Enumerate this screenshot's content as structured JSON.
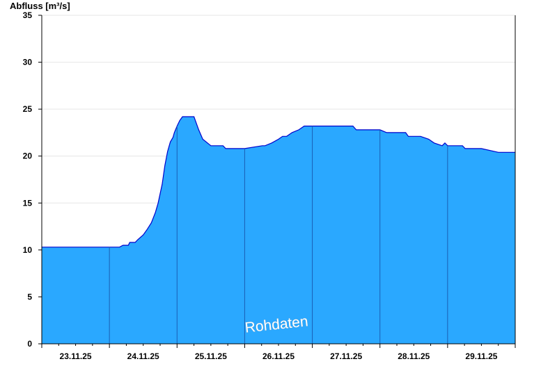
{
  "chart_data": {
    "type": "area",
    "ylabel": "Abfluss [m³/s]",
    "ylim": [
      0,
      35
    ],
    "y_ticks": [
      0,
      5,
      10,
      15,
      20,
      25,
      30,
      35
    ],
    "x_range_days": [
      0,
      7
    ],
    "x_tick_labels": [
      "23.11.25",
      "24.11.25",
      "25.11.25",
      "26.11.25",
      "27.11.25",
      "28.11.25",
      "29.11.25"
    ],
    "grid": true,
    "fill_color": "#2aa8ff",
    "line_color": "#0000cc",
    "annotation": "Rohdaten",
    "series": [
      {
        "x": [
          0,
          1.0,
          1.15,
          1.2,
          1.28,
          1.3,
          1.38,
          1.42,
          1.5,
          1.56,
          1.62,
          1.68,
          1.72,
          1.78,
          1.82,
          1.86,
          1.9,
          1.94,
          1.96,
          2.0,
          2.04,
          2.08,
          2.12,
          2.16,
          2.2,
          2.25,
          2.28,
          2.32,
          2.38,
          2.5,
          2.54,
          2.6,
          2.68,
          2.72,
          2.8,
          2.9,
          3.0,
          3.26,
          3.3,
          3.4,
          3.5,
          3.56,
          3.62,
          3.7,
          3.8,
          3.88,
          3.96,
          4.0,
          4.6,
          4.65,
          4.8,
          5.0,
          5.1,
          5.38,
          5.42,
          5.6,
          5.72,
          5.8,
          5.92,
          5.96,
          6.0,
          6.22,
          6.26,
          6.5,
          6.75,
          7.0
        ],
        "values": [
          10.3,
          10.3,
          10.3,
          10.5,
          10.5,
          10.8,
          10.8,
          11.1,
          11.6,
          12.2,
          12.9,
          14.0,
          15.0,
          17.0,
          19.0,
          20.5,
          21.5,
          22.0,
          22.5,
          23.2,
          23.8,
          24.2,
          24.2,
          24.2,
          24.2,
          24.2,
          23.6,
          22.8,
          21.8,
          21.1,
          21.1,
          21.1,
          21.1,
          20.8,
          20.8,
          20.8,
          20.8,
          21.1,
          21.1,
          21.4,
          21.8,
          22.1,
          22.1,
          22.5,
          22.8,
          23.2,
          23.2,
          23.2,
          23.2,
          22.8,
          22.8,
          22.8,
          22.5,
          22.5,
          22.1,
          22.1,
          21.8,
          21.4,
          21.1,
          21.4,
          21.1,
          21.1,
          20.8,
          20.8,
          20.4,
          20.4
        ]
      }
    ]
  }
}
